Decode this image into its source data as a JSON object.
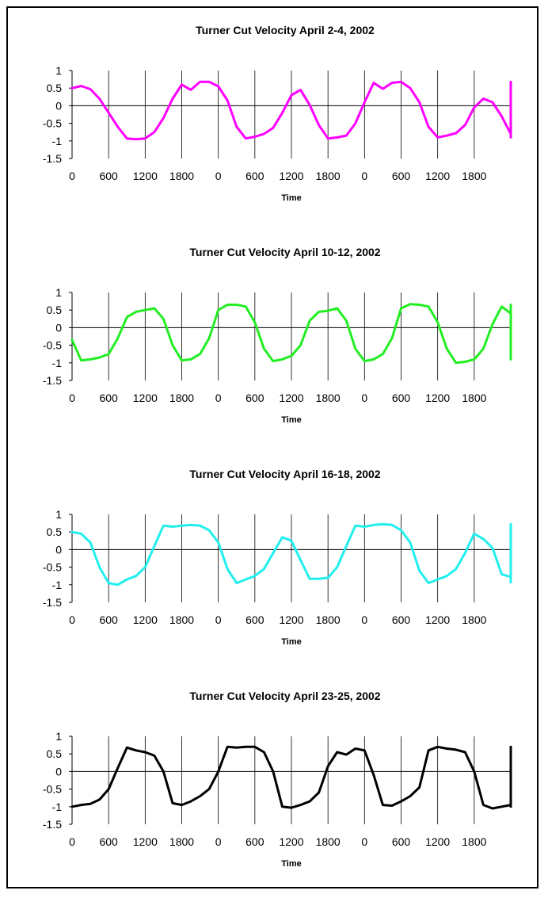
{
  "chart_data": [
    {
      "type": "line",
      "title": "Turner Cut Velocity  April 2-4, 2002",
      "xlabel": "Time",
      "ylim": [
        -1.5,
        1
      ],
      "yticks": [
        "1",
        "0.5",
        "0",
        "-0.5",
        "-1",
        "-1.5"
      ],
      "xtick_labels": [
        "0",
        "600",
        "1200",
        "1800",
        "0",
        "600",
        "1200",
        "1800",
        "0",
        "600",
        "1200",
        "1800"
      ],
      "color": "#ff00ff",
      "x_step_minutes": 75,
      "values": [
        0.5,
        0.56,
        0.47,
        0.2,
        -0.2,
        -0.6,
        -0.93,
        -0.95,
        -0.93,
        -0.75,
        -0.35,
        0.2,
        0.6,
        0.45,
        0.68,
        0.68,
        0.55,
        0.15,
        -0.6,
        -0.93,
        -0.88,
        -0.8,
        -0.63,
        -0.2,
        0.3,
        0.45,
        0.02,
        -0.55,
        -0.93,
        -0.9,
        -0.85,
        -0.5,
        0.1,
        0.65,
        0.48,
        0.65,
        0.68,
        0.5,
        0.1,
        -0.6,
        -0.9,
        -0.85,
        -0.78,
        -0.55,
        -0.05,
        0.2,
        0.1,
        -0.3,
        -0.8,
        -0.83,
        -0.75,
        -0.5,
        0.2,
        0.63,
        0.65,
        0.68,
        0.68,
        0.58,
        0.2,
        -0.6,
        -0.9,
        -0.85,
        -0.83
      ]
    },
    {
      "type": "line",
      "title": "Turner Cut Velocity  April 10-12, 2002",
      "xlabel": "Time",
      "ylim": [
        -1.5,
        1
      ],
      "yticks": [
        "1",
        "0.5",
        "0",
        "-0.5",
        "-1",
        "-1.5"
      ],
      "xtick_labels": [
        "0",
        "600",
        "1200",
        "1800",
        "0",
        "600",
        "1200",
        "1800",
        "0",
        "600",
        "1200",
        "1800"
      ],
      "color": "#22ee22",
      "x_step_minutes": 75,
      "values": [
        -0.35,
        -0.93,
        -0.9,
        -0.85,
        -0.75,
        -0.3,
        0.3,
        0.45,
        0.5,
        0.55,
        0.25,
        -0.5,
        -0.93,
        -0.9,
        -0.75,
        -0.3,
        0.5,
        0.65,
        0.65,
        0.6,
        0.15,
        -0.6,
        -0.95,
        -0.9,
        -0.8,
        -0.5,
        0.2,
        0.45,
        0.48,
        0.55,
        0.2,
        -0.6,
        -0.95,
        -0.9,
        -0.75,
        -0.3,
        0.55,
        0.67,
        0.65,
        0.6,
        0.15,
        -0.6,
        -1.0,
        -0.97,
        -0.9,
        -0.6,
        0.1,
        0.6,
        0.4,
        0.55,
        0.45,
        -0.1,
        -0.9,
        -0.85,
        -0.75,
        -0.3,
        0.55,
        0.65,
        0.6,
        0.55,
        0.47
      ]
    },
    {
      "type": "line",
      "title": "Turner Cut Velocity  April 16-18, 2002",
      "xlabel": "Time",
      "ylim": [
        -1.5,
        1
      ],
      "yticks": [
        "1",
        "0.5",
        "0",
        "-0.5",
        "-1",
        "-1.5"
      ],
      "xtick_labels": [
        "0",
        "600",
        "1200",
        "1800",
        "0",
        "600",
        "1200",
        "1800",
        "0",
        "600",
        "1200",
        "1800"
      ],
      "color": "#22eeee",
      "x_step_minutes": 75,
      "values": [
        0.5,
        0.45,
        0.2,
        -0.5,
        -0.95,
        -1.0,
        -0.85,
        -0.75,
        -0.5,
        0.1,
        0.68,
        0.65,
        0.68,
        0.7,
        0.68,
        0.55,
        0.2,
        -0.55,
        -0.95,
        -0.85,
        -0.75,
        -0.55,
        -0.1,
        0.35,
        0.25,
        -0.3,
        -0.83,
        -0.83,
        -0.8,
        -0.5,
        0.1,
        0.68,
        0.65,
        0.7,
        0.72,
        0.7,
        0.55,
        0.2,
        -0.6,
        -0.95,
        -0.85,
        -0.75,
        -0.55,
        -0.1,
        0.45,
        0.3,
        0.05,
        -0.7,
        -0.78,
        -0.68,
        -0.55,
        -0.1,
        0.65,
        0.65,
        0.7,
        0.72,
        0.68,
        0.55,
        0.1,
        -0.65,
        -0.93,
        -0.8,
        -0.72,
        -0.65,
        -0.45
      ]
    },
    {
      "type": "line",
      "title": "Turner Cut Velocity  April 23-25, 2002",
      "xlabel": "Time",
      "ylim": [
        -1.5,
        1
      ],
      "yticks": [
        "1",
        "0.5",
        "0",
        "-0.5",
        "-1",
        "-1.5"
      ],
      "xtick_labels": [
        "0",
        "600",
        "1200",
        "1800",
        "0",
        "600",
        "1200",
        "1800",
        "0",
        "600",
        "1200",
        "1800"
      ],
      "color": "#000000",
      "x_step_minutes": 75,
      "values": [
        -1.0,
        -0.95,
        -0.92,
        -0.8,
        -0.5,
        0.1,
        0.68,
        0.6,
        0.55,
        0.45,
        0.0,
        -0.9,
        -0.95,
        -0.85,
        -0.7,
        -0.5,
        0.0,
        0.7,
        0.68,
        0.7,
        0.7,
        0.55,
        0.0,
        -1.0,
        -1.03,
        -0.95,
        -0.85,
        -0.6,
        0.15,
        0.55,
        0.48,
        0.65,
        0.6,
        -0.1,
        -0.95,
        -0.97,
        -0.85,
        -0.7,
        -0.45,
        0.6,
        0.7,
        0.65,
        0.62,
        0.55,
        0.0,
        -0.95,
        -1.05,
        -1.0,
        -0.95,
        -0.75,
        0.0,
        0.7,
        0.65,
        0.67,
        0.6,
        0.0,
        -0.95,
        -1.0,
        -0.9,
        -0.6,
        0.1,
        0.7,
        0.68,
        0.65,
        0.6,
        0.0
      ]
    }
  ]
}
